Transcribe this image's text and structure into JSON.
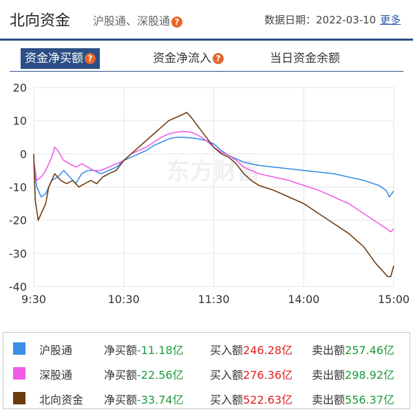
{
  "header": {
    "title": "北向资金",
    "subtitle": "沪股通、深股通",
    "date_label": "数据日期：",
    "date": "2022-03-10",
    "more": "更多"
  },
  "tabs": [
    {
      "label": "资金净买额",
      "active": true,
      "help": true
    },
    {
      "label": "资金净流入",
      "active": false,
      "help": true
    },
    {
      "label": "当日资金余额",
      "active": false,
      "help": false
    }
  ],
  "help_glyph": "?",
  "watermark": "东方财富",
  "chart_data": {
    "type": "line",
    "x_ticks": [
      "9:30",
      "10:30",
      "11:30",
      "14:00",
      "15:00"
    ],
    "x_range_minutes": [
      0,
      240
    ],
    "ylim": [
      -40,
      20
    ],
    "y_ticks": [
      20,
      10,
      0,
      -10,
      -20,
      -30,
      -40
    ],
    "grid": true,
    "series": [
      {
        "name": "沪股通",
        "color": "#3a8ee6",
        "points": [
          [
            0,
            -3
          ],
          [
            2,
            -10
          ],
          [
            5,
            -13
          ],
          [
            8,
            -12
          ],
          [
            12,
            -8
          ],
          [
            16,
            -7
          ],
          [
            20,
            -5
          ],
          [
            24,
            -7
          ],
          [
            28,
            -9
          ],
          [
            32,
            -6
          ],
          [
            36,
            -5
          ],
          [
            40,
            -5
          ],
          [
            45,
            -6
          ],
          [
            50,
            -5
          ],
          [
            55,
            -4
          ],
          [
            60,
            -2
          ],
          [
            65,
            -1
          ],
          [
            70,
            0
          ],
          [
            75,
            1
          ],
          [
            80,
            2.5
          ],
          [
            85,
            3.5
          ],
          [
            90,
            4.5
          ],
          [
            95,
            5
          ],
          [
            100,
            5
          ],
          [
            105,
            4.8
          ],
          [
            110,
            4.5
          ],
          [
            115,
            4
          ],
          [
            120,
            3
          ],
          [
            125,
            1
          ],
          [
            130,
            -0.5
          ],
          [
            135,
            -1.5
          ],
          [
            140,
            -2.5
          ],
          [
            145,
            -3
          ],
          [
            150,
            -3.5
          ],
          [
            160,
            -4
          ],
          [
            170,
            -4.5
          ],
          [
            180,
            -5
          ],
          [
            190,
            -5.5
          ],
          [
            200,
            -6
          ],
          [
            210,
            -7
          ],
          [
            220,
            -8
          ],
          [
            230,
            -9.5
          ],
          [
            235,
            -11
          ],
          [
            237,
            -13
          ],
          [
            240,
            -11.18
          ]
        ]
      },
      {
        "name": "深股通",
        "color": "#f05ce8",
        "points": [
          [
            0,
            -2
          ],
          [
            2,
            -8
          ],
          [
            5,
            -7
          ],
          [
            8,
            -5
          ],
          [
            12,
            -1
          ],
          [
            14,
            2
          ],
          [
            16,
            1
          ],
          [
            20,
            -2
          ],
          [
            24,
            -3
          ],
          [
            28,
            -4
          ],
          [
            32,
            -3
          ],
          [
            36,
            -4
          ],
          [
            40,
            -5
          ],
          [
            45,
            -5
          ],
          [
            50,
            -4
          ],
          [
            55,
            -3
          ],
          [
            60,
            -2
          ],
          [
            65,
            0
          ],
          [
            70,
            1
          ],
          [
            75,
            2
          ],
          [
            80,
            3.5
          ],
          [
            85,
            5
          ],
          [
            90,
            6
          ],
          [
            95,
            6.5
          ],
          [
            100,
            6.8
          ],
          [
            105,
            6.5
          ],
          [
            110,
            5.5
          ],
          [
            115,
            4
          ],
          [
            120,
            2
          ],
          [
            125,
            0.5
          ],
          [
            130,
            -0.5
          ],
          [
            135,
            -2
          ],
          [
            140,
            -4
          ],
          [
            145,
            -5
          ],
          [
            150,
            -6
          ],
          [
            160,
            -7
          ],
          [
            170,
            -8
          ],
          [
            180,
            -9.5
          ],
          [
            190,
            -11
          ],
          [
            200,
            -13
          ],
          [
            210,
            -15
          ],
          [
            220,
            -18
          ],
          [
            230,
            -21
          ],
          [
            235,
            -22.5
          ],
          [
            238,
            -23.5
          ],
          [
            240,
            -22.56
          ]
        ]
      },
      {
        "name": "北向资金",
        "color": "#6b3a0f",
        "points": [
          [
            0,
            0
          ],
          [
            1,
            -14
          ],
          [
            3,
            -20
          ],
          [
            5,
            -18
          ],
          [
            8,
            -15
          ],
          [
            10,
            -10
          ],
          [
            14,
            -6
          ],
          [
            18,
            -8
          ],
          [
            22,
            -9
          ],
          [
            26,
            -8
          ],
          [
            30,
            -10
          ],
          [
            34,
            -9
          ],
          [
            38,
            -8
          ],
          [
            42,
            -9
          ],
          [
            46,
            -7
          ],
          [
            50,
            -6
          ],
          [
            55,
            -5
          ],
          [
            60,
            -2
          ],
          [
            65,
            0
          ],
          [
            70,
            2
          ],
          [
            75,
            4
          ],
          [
            80,
            6
          ],
          [
            85,
            8
          ],
          [
            90,
            10
          ],
          [
            95,
            11
          ],
          [
            100,
            12
          ],
          [
            102,
            12.5
          ],
          [
            105,
            11
          ],
          [
            110,
            8
          ],
          [
            115,
            5
          ],
          [
            120,
            2
          ],
          [
            125,
            0
          ],
          [
            130,
            -1
          ],
          [
            135,
            -3
          ],
          [
            140,
            -6
          ],
          [
            145,
            -8
          ],
          [
            150,
            -9.5
          ],
          [
            160,
            -11
          ],
          [
            170,
            -13
          ],
          [
            180,
            -15
          ],
          [
            190,
            -18
          ],
          [
            200,
            -21
          ],
          [
            210,
            -24
          ],
          [
            220,
            -28
          ],
          [
            228,
            -33
          ],
          [
            232,
            -35
          ],
          [
            236,
            -37
          ],
          [
            238,
            -37
          ],
          [
            240,
            -33.74
          ]
        ]
      }
    ]
  },
  "legend": [
    {
      "name": "沪股通",
      "color": "#3a8ee6",
      "net_label": "净买额",
      "net_value": "-11.18亿",
      "buy_label": "买入额",
      "buy_value": "246.28亿",
      "sell_label": "卖出额",
      "sell_value": "257.46亿"
    },
    {
      "name": "深股通",
      "color": "#f05ce8",
      "net_label": "净买额",
      "net_value": "-22.56亿",
      "buy_label": "买入额",
      "buy_value": "276.36亿",
      "sell_label": "卖出额",
      "sell_value": "298.92亿"
    },
    {
      "name": "北向资金",
      "color": "#6b3a0f",
      "net_label": "净买额",
      "net_value": "-33.74亿",
      "buy_label": "买入额",
      "buy_value": "522.63亿",
      "sell_label": "卖出额",
      "sell_value": "556.37亿"
    }
  ]
}
